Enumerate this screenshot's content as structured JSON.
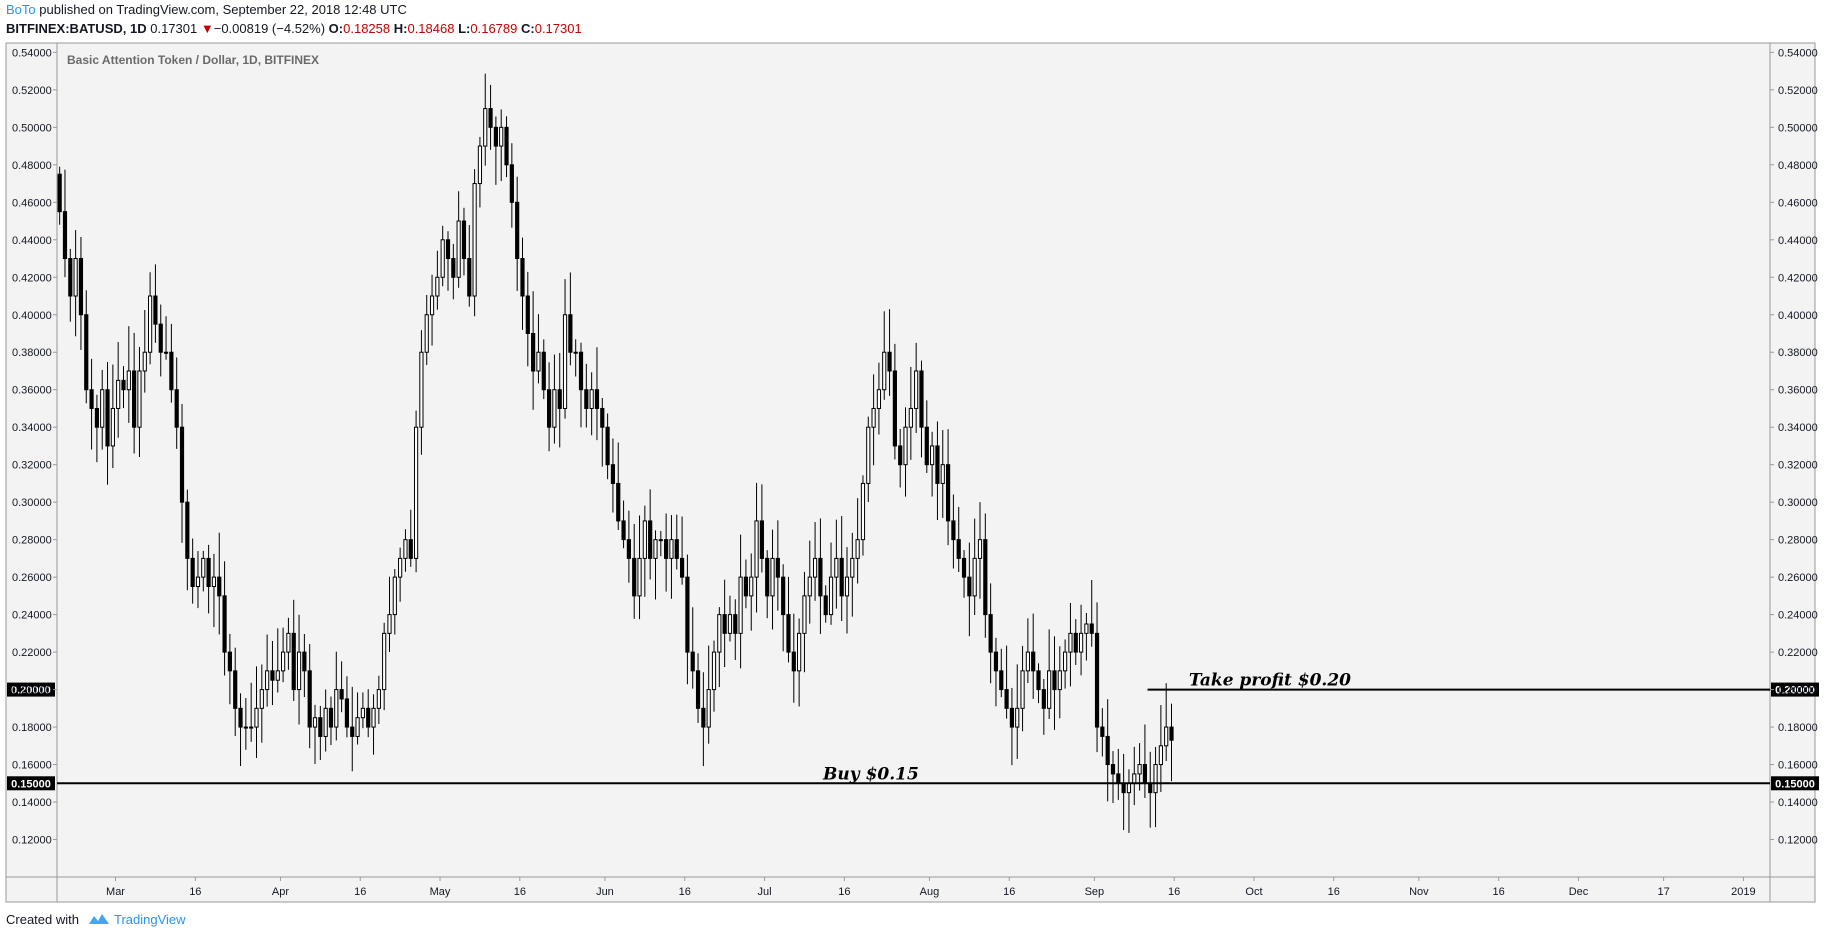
{
  "header": {
    "author": "BoTo",
    "published": "published on TradingView.com, September 22, 2018 12:48 UTC",
    "symbol": "BITFINEX:BATUSD, 1D",
    "last": "0.17301",
    "arrow": "▼",
    "change": "−0.00819 (−4.52%)",
    "o_label": "O:",
    "o": "0.18258",
    "h_label": "H:",
    "h": "0.18468",
    "l_label": "L:",
    "l": "0.16789",
    "c_label": "C:",
    "c": "0.17301"
  },
  "footer": {
    "created_with": "Created with",
    "tradingview": "TradingView"
  },
  "colors": {
    "background": "#f3f3f3",
    "candle_up": "#ffffff",
    "candle_down": "#000000",
    "accent": "#2196f3",
    "change_red": "#c60000"
  },
  "chart_data": {
    "type": "candlestick",
    "title": "Basic Attention Token / Dollar, 1D, BITFINEX",
    "y_range": [
      0.1,
      0.545
    ],
    "y_ticks": [
      "0.54000",
      "0.52000",
      "0.50000",
      "0.48000",
      "0.46000",
      "0.44000",
      "0.42000",
      "0.40000",
      "0.38000",
      "0.36000",
      "0.34000",
      "0.32000",
      "0.30000",
      "0.28000",
      "0.26000",
      "0.24000",
      "0.22000",
      "0.20000",
      "0.18000",
      "0.16000",
      "0.14000",
      "0.12000"
    ],
    "x_range": [
      "2018-02-18",
      "2019-01-06"
    ],
    "x_ticks": [
      {
        "label": "Mar",
        "date": "2018-03-01"
      },
      {
        "label": "16",
        "date": "2018-03-16"
      },
      {
        "label": "Apr",
        "date": "2018-04-01"
      },
      {
        "label": "16",
        "date": "2018-04-16"
      },
      {
        "label": "May",
        "date": "2018-05-01"
      },
      {
        "label": "16",
        "date": "2018-05-16"
      },
      {
        "label": "Jun",
        "date": "2018-06-01"
      },
      {
        "label": "16",
        "date": "2018-06-16"
      },
      {
        "label": "Jul",
        "date": "2018-07-01"
      },
      {
        "label": "16",
        "date": "2018-07-16"
      },
      {
        "label": "Aug",
        "date": "2018-08-01"
      },
      {
        "label": "16",
        "date": "2018-08-16"
      },
      {
        "label": "Sep",
        "date": "2018-09-01"
      },
      {
        "label": "16",
        "date": "2018-09-16"
      },
      {
        "label": "Oct",
        "date": "2018-10-01"
      },
      {
        "label": "16",
        "date": "2018-10-16"
      },
      {
        "label": "Nov",
        "date": "2018-11-01"
      },
      {
        "label": "16",
        "date": "2018-11-16"
      },
      {
        "label": "Dec",
        "date": "2018-12-01"
      },
      {
        "label": "17",
        "date": "2018-12-17"
      },
      {
        "label": "2019",
        "date": "2019-01-01"
      }
    ],
    "price_lines": [
      {
        "value": 0.2,
        "label": "0.20000",
        "from": "2018-09-11",
        "annotation": "Take profit $0.20",
        "annotation_date": "2018-10-04"
      },
      {
        "value": 0.15,
        "label": "0.15000",
        "from": "2018-02-18",
        "annotation": "Buy $0.15",
        "annotation_date": "2018-07-21"
      }
    ],
    "close_series": {
      "start": "2018-02-18",
      "values": [
        0.455,
        0.43,
        0.41,
        0.43,
        0.4,
        0.36,
        0.35,
        0.34,
        0.36,
        0.33,
        0.35,
        0.365,
        0.36,
        0.37,
        0.34,
        0.37,
        0.38,
        0.41,
        0.395,
        0.38,
        0.38,
        0.36,
        0.34,
        0.3,
        0.27,
        0.255,
        0.26,
        0.27,
        0.255,
        0.26,
        0.25,
        0.22,
        0.21,
        0.19,
        0.18,
        0.18,
        0.18,
        0.19,
        0.2,
        0.21,
        0.205,
        0.21,
        0.22,
        0.23,
        0.2,
        0.22,
        0.21,
        0.18,
        0.185,
        0.175,
        0.19,
        0.18,
        0.2,
        0.195,
        0.18,
        0.175,
        0.185,
        0.19,
        0.18,
        0.19,
        0.2,
        0.23,
        0.24,
        0.26,
        0.27,
        0.28,
        0.27,
        0.34,
        0.38,
        0.4,
        0.41,
        0.42,
        0.44,
        0.43,
        0.42,
        0.45,
        0.43,
        0.41,
        0.47,
        0.49,
        0.51,
        0.5,
        0.49,
        0.5,
        0.48,
        0.46,
        0.43,
        0.41,
        0.39,
        0.37,
        0.38,
        0.36,
        0.34,
        0.36,
        0.35,
        0.4,
        0.38,
        0.38,
        0.36,
        0.35,
        0.36,
        0.35,
        0.34,
        0.32,
        0.31,
        0.29,
        0.28,
        0.27,
        0.25,
        0.27,
        0.29,
        0.27,
        0.28,
        0.28,
        0.27,
        0.28,
        0.27,
        0.26,
        0.22,
        0.21,
        0.19,
        0.18,
        0.2,
        0.22,
        0.24,
        0.23,
        0.24,
        0.23,
        0.26,
        0.25,
        0.26,
        0.29,
        0.27,
        0.25,
        0.27,
        0.26,
        0.24,
        0.22,
        0.21,
        0.23,
        0.25,
        0.26,
        0.27,
        0.25,
        0.24,
        0.26,
        0.27,
        0.25,
        0.26,
        0.27,
        0.28,
        0.31,
        0.34,
        0.35,
        0.36,
        0.38,
        0.37,
        0.33,
        0.32,
        0.34,
        0.35,
        0.37,
        0.34,
        0.32,
        0.33,
        0.31,
        0.32,
        0.29,
        0.28,
        0.27,
        0.26,
        0.25,
        0.27,
        0.28,
        0.24,
        0.22,
        0.21,
        0.2,
        0.19,
        0.18,
        0.19,
        0.21,
        0.22,
        0.21,
        0.2,
        0.19,
        0.21,
        0.2,
        0.21,
        0.22,
        0.23,
        0.22,
        0.23,
        0.235,
        0.23,
        0.18,
        0.175,
        0.16,
        0.155,
        0.15,
        0.145,
        0.15,
        0.155,
        0.16,
        0.15,
        0.145,
        0.16,
        0.17,
        0.18,
        0.173
      ]
    }
  }
}
